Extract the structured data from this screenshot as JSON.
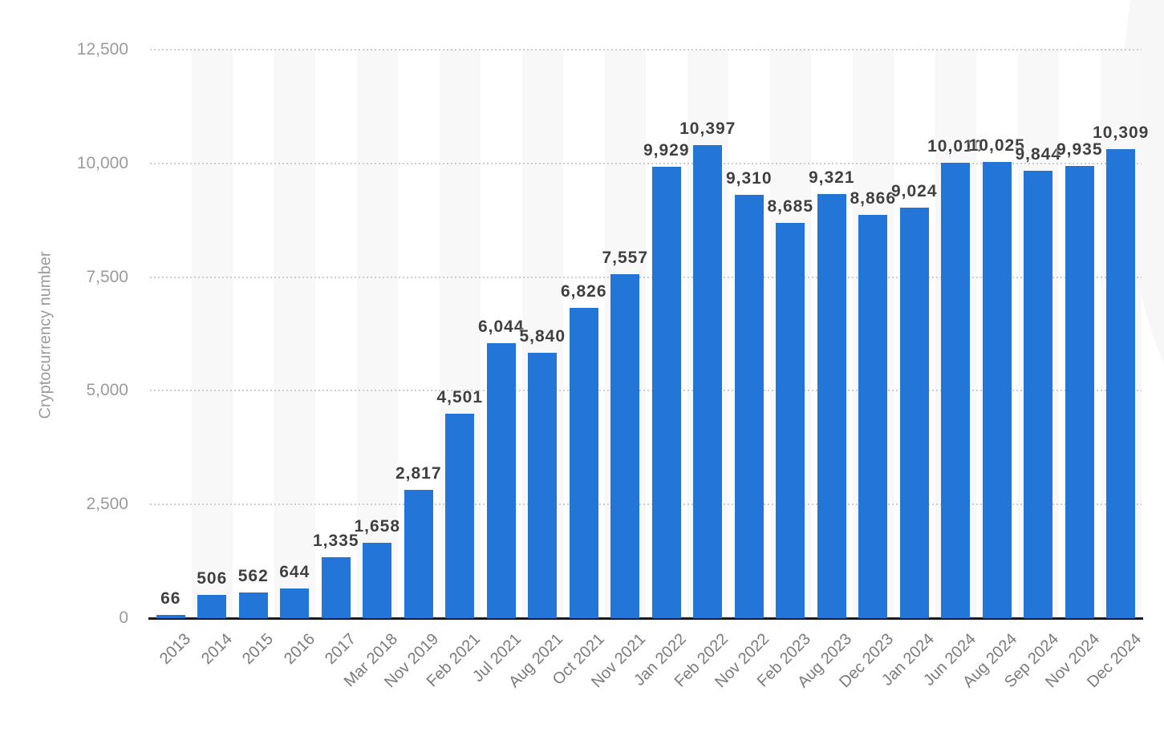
{
  "chart_data": {
    "type": "bar",
    "title": "",
    "ylabel": "Cryptocurrency number",
    "xlabel": "",
    "categories": [
      "2013",
      "2014",
      "2015",
      "2016",
      "2017",
      "Mar 2018",
      "Nov 2019",
      "Feb 2021",
      "Jul 2021",
      "Aug 2021",
      "Oct 2021",
      "Nov 2021",
      "Jan 2022",
      "Feb 2022",
      "Nov 2022",
      "Feb 2023",
      "Aug 2023",
      "Dec 2023",
      "Jan 2024",
      "Jun 2024",
      "Aug 2024",
      "Sep 2024",
      "Nov 2024",
      "Dec 2024"
    ],
    "values": [
      66,
      506,
      562,
      644,
      1335,
      1658,
      2817,
      4501,
      6044,
      5840,
      6826,
      7557,
      9929,
      10397,
      9310,
      8685,
      9321,
      8866,
      9024,
      10010,
      10025,
      9844,
      9935,
      10309
    ],
    "value_labels": [
      "66",
      "506",
      "562",
      "644",
      "1,335",
      "1,658",
      "2,817",
      "4,501",
      "6,044",
      "5,840",
      "6,826",
      "7,557",
      "9,929",
      "10,397",
      "9,310",
      "8,685",
      "9,321",
      "8,866",
      "9,024",
      "10,010",
      "10,025",
      "9,844",
      "9,935",
      "10,309"
    ],
    "ylim": [
      0,
      12500
    ],
    "ytick_values": [
      0,
      2500,
      5000,
      7500,
      10000,
      12500
    ],
    "ytick_labels": [
      "0",
      "2,500",
      "5,000",
      "7,500",
      "10,000",
      "12,500"
    ],
    "grid": "horizontal dotted",
    "legend": "none",
    "plot_bands": "alternating vertical stripes",
    "colors": {
      "bar": "#2376d8",
      "gridline": "#cccccc",
      "axis_line": "#1a1a1a",
      "value_label": "#404040",
      "ytick_label": "#9b9b9b",
      "xtick_label": "#7b7b7b",
      "stripe": "#f8f8f8",
      "background": "#ffffff"
    }
  }
}
